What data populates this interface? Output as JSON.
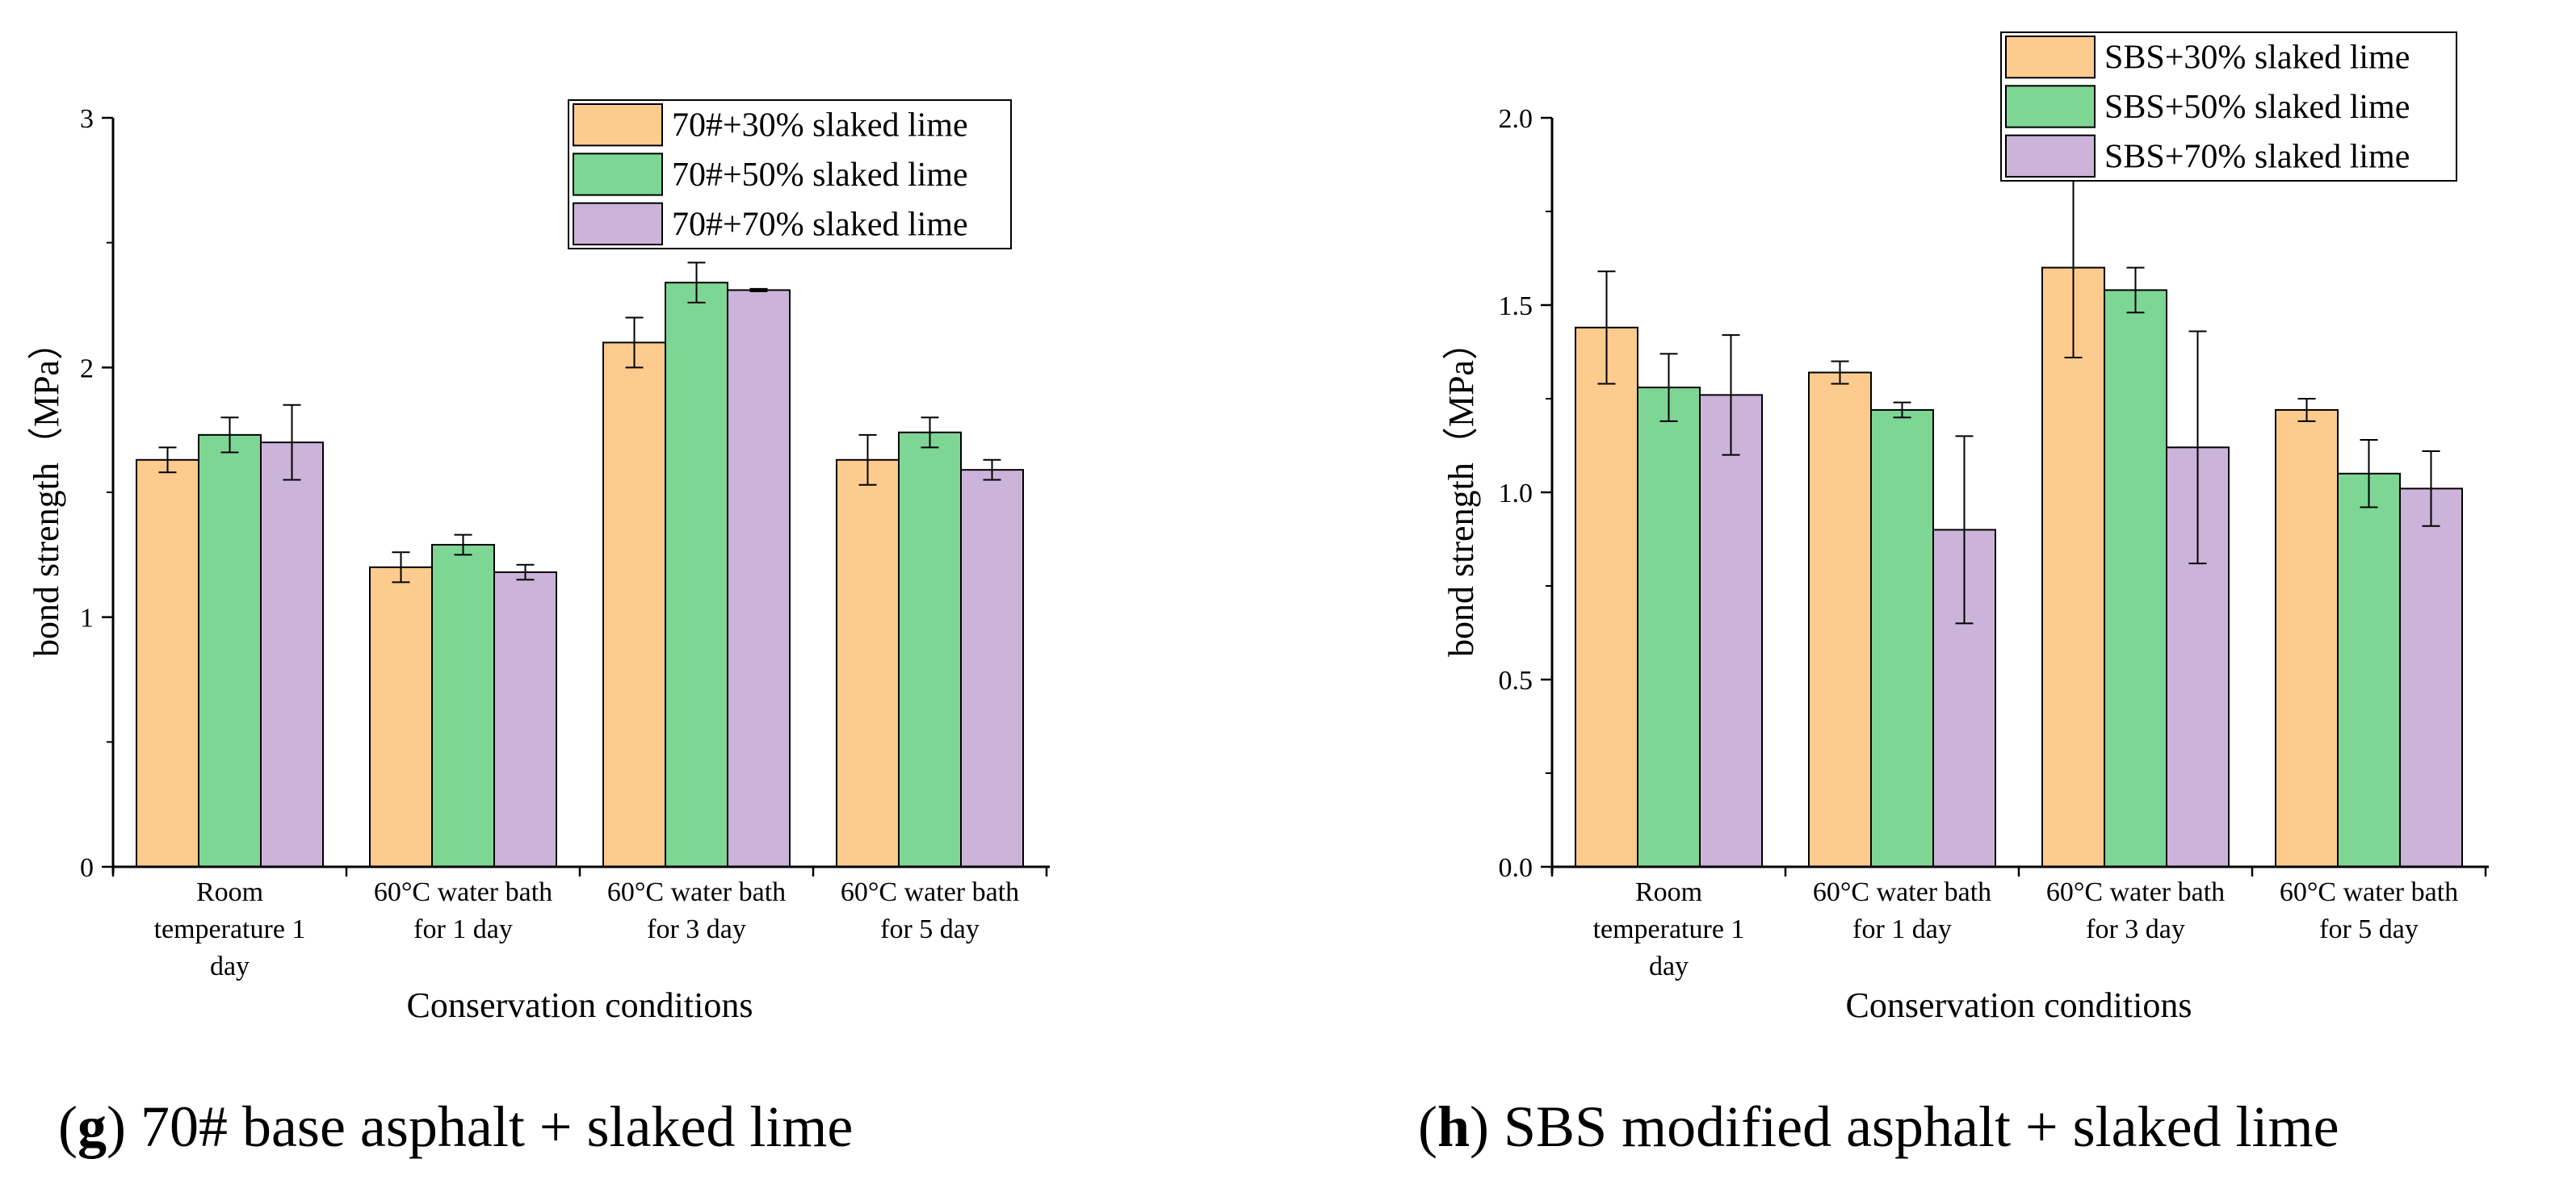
{
  "colors": {
    "series_1": "#FECB8E",
    "series_2": "#7ED695",
    "series_3": "#CCB3D9",
    "axis": "#000000"
  },
  "chart_data": [
    {
      "type": "bar",
      "panel_letter": "g",
      "caption_text": " 70# base asphalt + slaked lime",
      "xlabel": "Conservation conditions",
      "ylabel": "bond strength（MPa）",
      "ylim": [
        0,
        3
      ],
      "yticks": [
        "0",
        "1",
        "2",
        "3"
      ],
      "categories": [
        [
          "Room",
          "temperature 1",
          "day"
        ],
        [
          "60°C water bath",
          "for 1 day"
        ],
        [
          "60°C water bath",
          "for 3 day"
        ],
        [
          "60°C water bath",
          "for 5 day"
        ]
      ],
      "legend_position": "top-right",
      "series": [
        {
          "name": "70#+30% slaked lime",
          "values": [
            1.63,
            1.2,
            2.1,
            1.63
          ],
          "errors": [
            0.05,
            0.06,
            0.1,
            0.1
          ]
        },
        {
          "name": "70#+50% slaked lime",
          "values": [
            1.73,
            1.29,
            2.34,
            1.74
          ],
          "errors": [
            0.07,
            0.04,
            0.08,
            0.06
          ]
        },
        {
          "name": "70#+70% slaked lime",
          "values": [
            1.7,
            1.18,
            2.31,
            1.59
          ],
          "errors": [
            0.15,
            0.03,
            0.005,
            0.04
          ]
        }
      ]
    },
    {
      "type": "bar",
      "panel_letter": "h",
      "caption_text": " SBS modified asphalt + slaked lime",
      "xlabel": "Conservation conditions",
      "ylabel": "bond strength（MPa）",
      "ylim": [
        0,
        2.0
      ],
      "yticks": [
        "0.0",
        "0.5",
        "1.0",
        "1.5",
        "2.0"
      ],
      "categories": [
        [
          "Room",
          "temperature 1",
          "day"
        ],
        [
          "60°C water bath",
          "for 1 day"
        ],
        [
          "60°C water bath",
          "for 3 day"
        ],
        [
          "60°C water bath",
          "for 5 day"
        ]
      ],
      "legend_position": "top-right",
      "series": [
        {
          "name": "SBS+30% slaked lime",
          "values": [
            1.44,
            1.32,
            1.6,
            1.22
          ],
          "errors": [
            0.15,
            0.03,
            0.24,
            0.03
          ]
        },
        {
          "name": "SBS+50% slaked lime",
          "values": [
            1.28,
            1.22,
            1.54,
            1.05
          ],
          "errors": [
            0.09,
            0.02,
            0.06,
            0.09
          ]
        },
        {
          "name": "SBS+70% slaked lime",
          "values": [
            1.26,
            0.9,
            1.12,
            1.01
          ],
          "errors": [
            0.16,
            0.25,
            0.31,
            0.1
          ]
        }
      ]
    }
  ]
}
